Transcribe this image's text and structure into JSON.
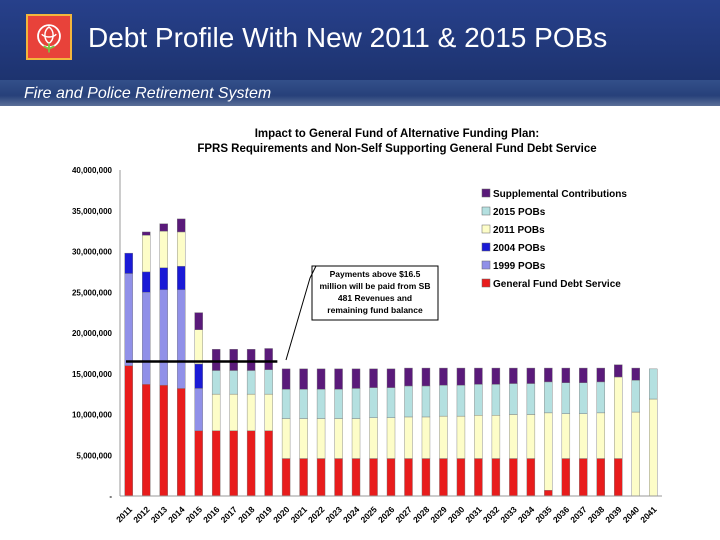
{
  "slide": {
    "title": "Debt Profile With New 2011 & 2015 POBs",
    "subtitle": "Fire and Police Retirement System",
    "logo": "rose-logo"
  },
  "annotation": {
    "lines": [
      "Payments above $16.5",
      "million will be paid from SB",
      "481 Revenues and",
      "remaining fund balance"
    ]
  },
  "colors": {
    "gfds": "#e81c1c",
    "pob1999": "#9090e8",
    "pob2004": "#1a1ad6",
    "pob2011": "#fdfdc8",
    "pob2015": "#b4e0e0",
    "supplemental": "#5a1a7a",
    "threshold": "#000000"
  },
  "chart_data": {
    "type": "bar",
    "stacked": true,
    "title": [
      "Impact to General Fund of Alternative Funding Plan:",
      "FPRS Requirements and Non-Self Supporting General Fund Debt Service"
    ],
    "ylim": [
      0,
      40000000
    ],
    "yticks": [
      "-",
      "5,000,000",
      "10,000,000",
      "15,000,000",
      "20,000,000",
      "25,000,000",
      "30,000,000",
      "35,000,000",
      "40,000,000"
    ],
    "threshold_value": 16500000,
    "legend_position": "top-right",
    "grid": false,
    "categories": [
      "2011",
      "2012",
      "2013",
      "2014",
      "2015",
      "2016",
      "2017",
      "2018",
      "2019",
      "2020",
      "2021",
      "2022",
      "2023",
      "2024",
      "2025",
      "2026",
      "2027",
      "2028",
      "2029",
      "2030",
      "2031",
      "2032",
      "2033",
      "2034",
      "2035",
      "2036",
      "2037",
      "2038",
      "2039",
      "2040",
      "2041"
    ],
    "series": [
      {
        "name": "General Fund Debt Service",
        "color_key": "gfds",
        "values": [
          16000000,
          13700000,
          13600000,
          13200000,
          8000000,
          8000000,
          8000000,
          8000000,
          8000000,
          4600000,
          4600000,
          4600000,
          4600000,
          4600000,
          4600000,
          4600000,
          4600000,
          4600000,
          4600000,
          4600000,
          4600000,
          4600000,
          4600000,
          4600000,
          700000,
          4600000,
          4600000,
          4600000,
          4600000,
          0,
          0
        ]
      },
      {
        "name": "1999 POBs",
        "color_key": "pob1999",
        "values": [
          11300000,
          11300000,
          11700000,
          12100000,
          5200000,
          0,
          0,
          0,
          0,
          0,
          0,
          0,
          0,
          0,
          0,
          0,
          0,
          0,
          0,
          0,
          0,
          0,
          0,
          0,
          0,
          0,
          0,
          0,
          0,
          0,
          0
        ]
      },
      {
        "name": "2004 POBs",
        "color_key": "pob2004",
        "values": [
          2500000,
          2500000,
          2700000,
          2900000,
          3000000,
          0,
          0,
          0,
          0,
          0,
          0,
          0,
          0,
          0,
          0,
          0,
          0,
          0,
          0,
          0,
          0,
          0,
          0,
          0,
          0,
          0,
          0,
          0,
          0,
          0,
          0
        ]
      },
      {
        "name": "2011 POBs",
        "color_key": "pob2011",
        "values": [
          0,
          4500000,
          4500000,
          4200000,
          4200000,
          4500000,
          4500000,
          4500000,
          4500000,
          4900000,
          4900000,
          4900000,
          4900000,
          4900000,
          5000000,
          5000000,
          5100000,
          5100000,
          5200000,
          5200000,
          5300000,
          5300000,
          5400000,
          5400000,
          9500000,
          5500000,
          5500000,
          5600000,
          10000000,
          10300000,
          11900000
        ]
      },
      {
        "name": "2015 POBs",
        "color_key": "pob2015",
        "values": [
          0,
          0,
          0,
          0,
          0,
          2900000,
          2900000,
          2900000,
          3000000,
          3600000,
          3600000,
          3600000,
          3600000,
          3700000,
          3700000,
          3700000,
          3800000,
          3800000,
          3800000,
          3800000,
          3800000,
          3800000,
          3800000,
          3800000,
          3800000,
          3800000,
          3800000,
          3800000,
          0,
          3900000,
          3700000
        ]
      },
      {
        "name": "Supplemental Contributions",
        "color_key": "supplemental",
        "values": [
          0,
          400000,
          900000,
          1600000,
          2100000,
          2600000,
          2600000,
          2600000,
          2600000,
          2500000,
          2500000,
          2500000,
          2500000,
          2400000,
          2300000,
          2300000,
          2200000,
          2200000,
          2100000,
          2100000,
          2000000,
          2000000,
          1900000,
          1900000,
          1700000,
          1800000,
          1800000,
          1700000,
          1500000,
          1500000,
          0
        ]
      }
    ]
  }
}
